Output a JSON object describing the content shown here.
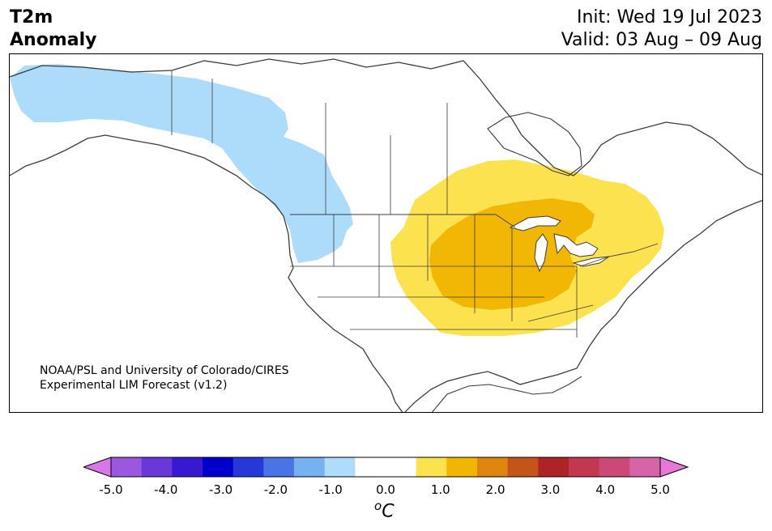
{
  "title": {
    "line1": "T2m",
    "line2": "Anomaly"
  },
  "init": "Init: Wed 19 Jul 2023",
  "valid": "Valid: 03 Aug – 09 Aug",
  "credit": {
    "line1": "NOAA/PSL and University of Colorado/CIRES",
    "line2": "Experimental LIM Forecast (v1.2)"
  },
  "colorbar": {
    "ticks": [
      "-5.0",
      "-4.0",
      "-3.0",
      "-2.0",
      "-1.0",
      "0.0",
      "1.0",
      "2.0",
      "3.0",
      "4.0",
      "5.0"
    ],
    "unit_base": "C",
    "unit_sup": "o",
    "colors": [
      "#d878e8",
      "#9a58e0",
      "#6838d8",
      "#3818d0",
      "#0000cc",
      "#2838d8",
      "#4a74e6",
      "#76b2f0",
      "#aedcfa",
      "#ffffff",
      "#ffffff",
      "#fce24e",
      "#f2b600",
      "#de8610",
      "#c45418",
      "#ae2424",
      "#c23850",
      "#cc4878",
      "#d864a8",
      "#e878d8"
    ]
  },
  "map_colors": {
    "cool_anomaly": "#addcfb",
    "warm_1": "#fde24f",
    "warm_2": "#f2b705",
    "border": "#3c3c3c"
  }
}
